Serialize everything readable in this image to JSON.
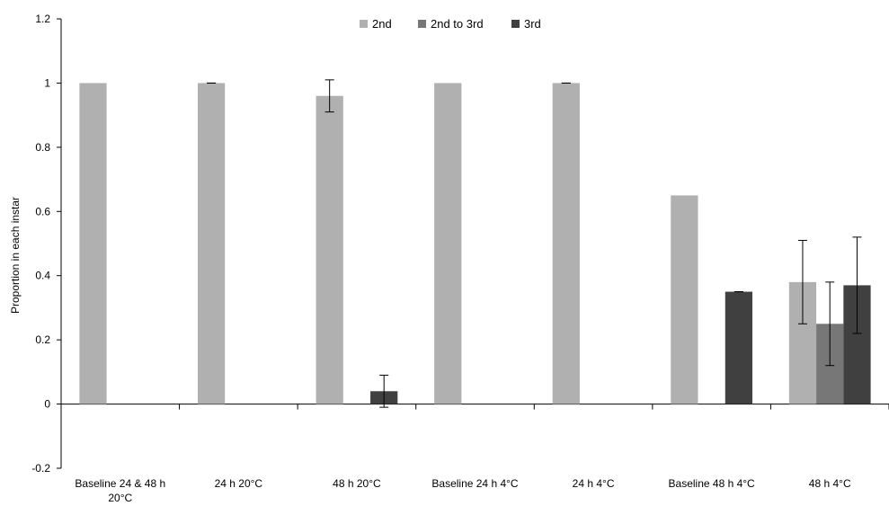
{
  "chart_data": {
    "type": "bar",
    "title": "",
    "xlabel": "",
    "ylabel": "Proportion in each instar",
    "ylim": [
      -0.2,
      1.2
    ],
    "yticks": [
      "-0.2",
      "0",
      "0.2",
      "0.4",
      "0.6",
      "0.8",
      "1",
      "1.2"
    ],
    "ytick_values": [
      -0.2,
      0,
      0.2,
      0.4,
      0.6,
      0.8,
      1.0,
      1.2
    ],
    "categories": [
      [
        "Baseline 24 & 48 h",
        "20°C"
      ],
      [
        "24 h 20°C"
      ],
      [
        "48 h 20°C"
      ],
      [
        "Baseline 24 h 4°C"
      ],
      [
        "24 h 4°C"
      ],
      [
        "Baseline 48 h 4°C"
      ],
      [
        "48 h 4°C"
      ]
    ],
    "legend_position": "top-center",
    "grid": false,
    "series": [
      {
        "name": "2nd",
        "color": "#b0b0b0",
        "values": [
          1.0,
          1.0,
          0.96,
          1.0,
          1.0,
          0.65,
          0.38
        ],
        "errors": [
          null,
          0.0,
          0.05,
          null,
          0.0,
          null,
          0.13
        ]
      },
      {
        "name": "2nd to 3rd",
        "color": "#777777",
        "values": [
          0,
          0,
          0,
          0,
          0,
          0,
          0.25
        ],
        "errors": [
          null,
          null,
          null,
          null,
          null,
          null,
          0.13
        ]
      },
      {
        "name": "3rd",
        "color": "#404040",
        "values": [
          0,
          0,
          0.04,
          0,
          0,
          0.35,
          0.37
        ],
        "errors": [
          null,
          null,
          0.05,
          null,
          null,
          0.0,
          0.15
        ]
      }
    ]
  }
}
